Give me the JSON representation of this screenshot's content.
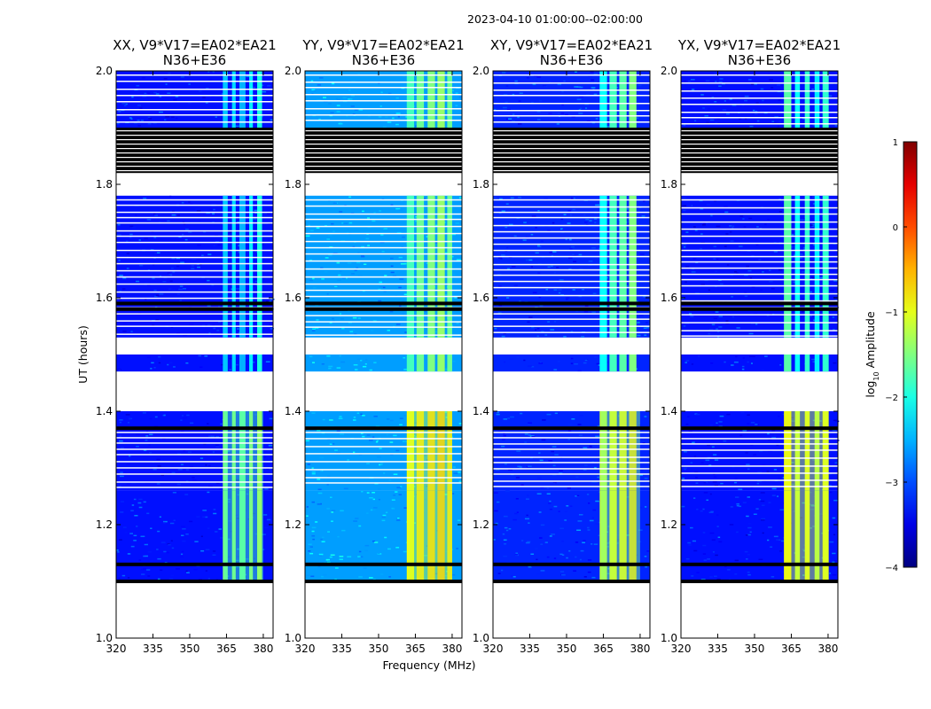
{
  "chart_data": {
    "type": "heatmap",
    "suptitle": "2023-04-10  01:00:00--02:00:00",
    "xlabel": "Frequency (MHz)",
    "ylabel": "UT (hours)",
    "xlim": [
      320,
      384
    ],
    "ylim": [
      1.0,
      2.0
    ],
    "xticks": [
      320,
      335,
      350,
      365,
      380
    ],
    "yticks": [
      1.0,
      1.2,
      1.4,
      1.6,
      1.8,
      2.0
    ],
    "yticklabels": [
      "1.0",
      "1.2",
      "1.4",
      "1.6",
      "1.8",
      "2.0"
    ],
    "colorbar": {
      "label_prefix": "log",
      "label_sub": "10",
      "label_suffix": " Amplitude",
      "range": [
        -4,
        1
      ],
      "ticks": [
        1,
        0,
        -1,
        -2,
        -3,
        -4
      ],
      "ticklabels": [
        "1",
        "0",
        "−1",
        "−2",
        "−3",
        "−4"
      ],
      "colormap": "jet"
    },
    "time_blocks": [
      {
        "start": 1.1,
        "end": 1.26,
        "state": "data",
        "note": "strong RFI band 364-380 MHz"
      },
      {
        "start": 1.26,
        "end": 1.37,
        "state": "data with flagged rows"
      },
      {
        "start": 1.37,
        "end": 1.4,
        "state": "data"
      },
      {
        "start": 1.4,
        "end": 1.47,
        "state": "missing"
      },
      {
        "start": 1.47,
        "end": 1.5,
        "state": "data"
      },
      {
        "start": 1.5,
        "end": 1.53,
        "state": "missing"
      },
      {
        "start": 1.53,
        "end": 1.59,
        "state": "data with flagged rows"
      },
      {
        "start": 1.59,
        "end": 1.78,
        "state": "data with flagged rows"
      },
      {
        "start": 1.78,
        "end": 1.82,
        "state": "missing"
      },
      {
        "start": 1.82,
        "end": 1.9,
        "state": "flagged (zero)"
      },
      {
        "start": 1.9,
        "end": 2.0,
        "state": "data with flagged rows"
      }
    ],
    "panels": [
      {
        "name": "XX",
        "title_line1": "XX, V9*V17=EA02*EA21",
        "title_line2": "N36+E36",
        "background_log10": -3.3,
        "rfi_band_MHz": [
          364,
          380
        ],
        "rfi_lines": [
          {
            "freq": 364.5,
            "width": 2.0,
            "level": -1.5
          },
          {
            "freq": 368.0,
            "width": 1.5,
            "level": -1.4
          },
          {
            "freq": 371.5,
            "width": 2.5,
            "level": -1.6
          },
          {
            "freq": 375.0,
            "width": 1.5,
            "level": -1.3
          },
          {
            "freq": 378.5,
            "width": 2.0,
            "level": -1.1
          }
        ]
      },
      {
        "name": "YY",
        "title_line1": "YY, V9*V17=EA02*EA21",
        "title_line2": "N36+E36",
        "background_log10": -2.6,
        "rfi_band_MHz": [
          362,
          380
        ],
        "rfi_lines": [
          {
            "freq": 363.0,
            "width": 3.0,
            "level": -0.9
          },
          {
            "freq": 367.0,
            "width": 3.0,
            "level": -0.7
          },
          {
            "freq": 371.5,
            "width": 3.0,
            "level": -0.6
          },
          {
            "freq": 375.5,
            "width": 3.0,
            "level": -0.5
          },
          {
            "freq": 379.0,
            "width": 2.0,
            "level": -0.7
          }
        ]
      },
      {
        "name": "XY",
        "title_line1": "XY, V9*V17=EA02*EA21",
        "title_line2": "N36+E36",
        "background_log10": -3.2,
        "rfi_band_MHz": [
          364,
          380
        ],
        "rfi_lines": [
          {
            "freq": 365.0,
            "width": 3.0,
            "level": -1.2
          },
          {
            "freq": 369.0,
            "width": 3.0,
            "level": -0.9
          },
          {
            "freq": 373.0,
            "width": 3.0,
            "level": -0.8
          },
          {
            "freq": 377.0,
            "width": 3.0,
            "level": -0.6
          }
        ]
      },
      {
        "name": "YX",
        "title_line1": "YX, V9*V17=EA02*EA21",
        "title_line2": "N36+E36",
        "background_log10": -3.3,
        "rfi_band_MHz": [
          362,
          380
        ],
        "rfi_lines": [
          {
            "freq": 363.5,
            "width": 3.0,
            "level": -0.8
          },
          {
            "freq": 367.5,
            "width": 2.0,
            "level": -1.2
          },
          {
            "freq": 371.5,
            "width": 2.0,
            "level": -1.0
          },
          {
            "freq": 375.5,
            "width": 2.0,
            "level": -1.3
          },
          {
            "freq": 379.0,
            "width": 2.5,
            "level": -1.0
          }
        ]
      }
    ]
  }
}
